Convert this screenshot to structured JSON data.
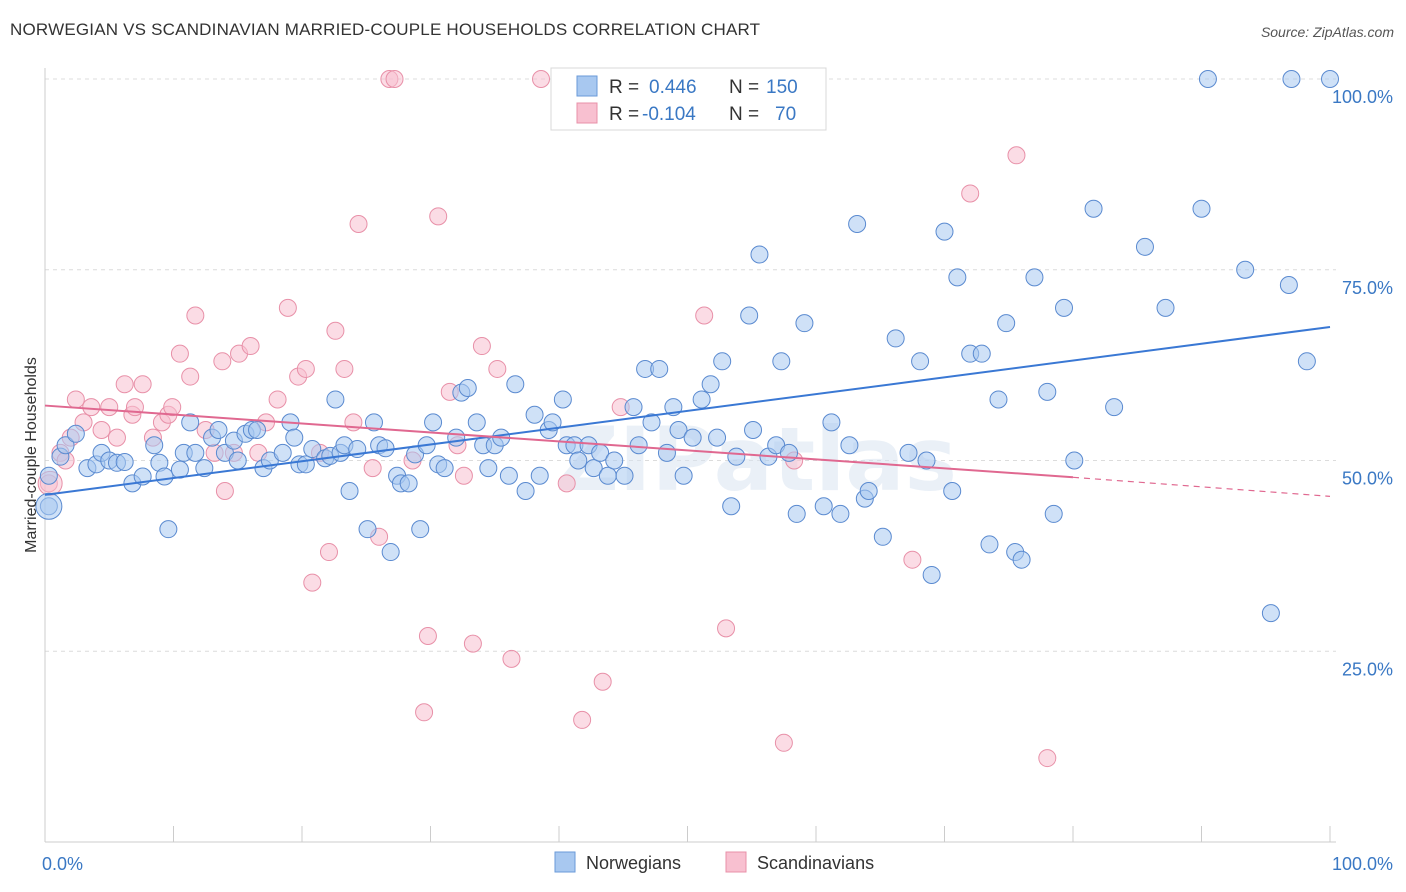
{
  "header": {
    "title": "NORWEGIAN VS SCANDINAVIAN MARRIED-COUPLE HOUSEHOLDS CORRELATION CHART",
    "source": "Source: ZipAtlas.com"
  },
  "watermark": "ZIPatlas",
  "stats_box": {
    "rows": [
      {
        "r_label": "R =",
        "r_value": "0.446",
        "n_label": "N =",
        "n_value": "150",
        "color": "#a8c8f0",
        "stroke": "#6a9ad8"
      },
      {
        "r_label": "R =",
        "r_value": "-0.104",
        "n_label": "N =",
        "n_value": "70",
        "color": "#f8c0d0",
        "stroke": "#e890a8"
      }
    ]
  },
  "legend": {
    "items": [
      {
        "label": "Norwegians",
        "color": "#a8c8f0",
        "stroke": "#6a9ad8"
      },
      {
        "label": "Scandinavians",
        "color": "#f8c0d0",
        "stroke": "#e890a8"
      }
    ]
  },
  "chart_data": {
    "type": "scatter",
    "title": "NORWEGIAN VS SCANDINAVIAN MARRIED-COUPLE HOUSEHOLDS CORRELATION CHART",
    "xlabel": "",
    "ylabel": "Married-couple Households",
    "xlim": [
      0,
      100
    ],
    "ylim": [
      0,
      100
    ],
    "x_tick_labels": {
      "left": "0.0%",
      "right": "100.0%"
    },
    "y_ticks": [
      {
        "value": 100,
        "label": "100.0%"
      },
      {
        "value": 75,
        "label": "75.0%"
      },
      {
        "value": 50,
        "label": "50.0%"
      },
      {
        "value": 25,
        "label": "25.0%"
      }
    ],
    "grid": "horizontal dashed",
    "legend_position": "bottom-center",
    "colors": {
      "norwegians": "#3a78d4",
      "scandinavians": "#e06890",
      "blue_fill": "#a8c8f0",
      "pink_fill": "#f8c0d0"
    },
    "series": [
      {
        "name": "Norwegians",
        "r": 0.446,
        "n": 150,
        "trend": {
          "x0": 0,
          "y0": 45.5,
          "x1": 100,
          "y1": 67.5
        },
        "points": [
          [
            0.3,
            44
          ],
          [
            0.3,
            48
          ],
          [
            1.2,
            50.5
          ],
          [
            1.6,
            52
          ],
          [
            2.4,
            53.5
          ],
          [
            3.3,
            49
          ],
          [
            4,
            49.5
          ],
          [
            4.4,
            51
          ],
          [
            5,
            50
          ],
          [
            5.6,
            49.7
          ],
          [
            6.2,
            49.8
          ],
          [
            6.8,
            47
          ],
          [
            7.6,
            47.9
          ],
          [
            8.5,
            52
          ],
          [
            8.9,
            49.7
          ],
          [
            9.3,
            47.9
          ],
          [
            9.6,
            41
          ],
          [
            10.5,
            48.8
          ],
          [
            10.8,
            51
          ],
          [
            11.3,
            55
          ],
          [
            11.7,
            51
          ],
          [
            12.4,
            49
          ],
          [
            13,
            53
          ],
          [
            13.5,
            54
          ],
          [
            14,
            51
          ],
          [
            14.7,
            52.6
          ],
          [
            15,
            50
          ],
          [
            15.6,
            53.5
          ],
          [
            16.1,
            54
          ],
          [
            16.5,
            54
          ],
          [
            17,
            49
          ],
          [
            17.5,
            50
          ],
          [
            18.5,
            51
          ],
          [
            19.1,
            55
          ],
          [
            19.4,
            53
          ],
          [
            19.8,
            49.5
          ],
          [
            20.3,
            49.5
          ],
          [
            20.8,
            51.5
          ],
          [
            21.8,
            50.3
          ],
          [
            22.2,
            50.6
          ],
          [
            22.6,
            58
          ],
          [
            23,
            51
          ],
          [
            23.3,
            52
          ],
          [
            23.7,
            46
          ],
          [
            24.3,
            51.5
          ],
          [
            25.1,
            41
          ],
          [
            25.6,
            55
          ],
          [
            26,
            52
          ],
          [
            26.5,
            51.6
          ],
          [
            26.9,
            38
          ],
          [
            27.4,
            48
          ],
          [
            27.7,
            47
          ],
          [
            28.3,
            47
          ],
          [
            28.8,
            50.8
          ],
          [
            29.2,
            41
          ],
          [
            29.7,
            52
          ],
          [
            30.2,
            55
          ],
          [
            30.6,
            49.5
          ],
          [
            31.1,
            49
          ],
          [
            32,
            53
          ],
          [
            32.4,
            58.9
          ],
          [
            32.9,
            59.5
          ],
          [
            33.6,
            55
          ],
          [
            34.1,
            52
          ],
          [
            34.5,
            49
          ],
          [
            35,
            52
          ],
          [
            35.5,
            53
          ],
          [
            36.1,
            48
          ],
          [
            36.6,
            60
          ],
          [
            37.4,
            46
          ],
          [
            38.1,
            56
          ],
          [
            38.5,
            48
          ],
          [
            39.2,
            54
          ],
          [
            39.5,
            55
          ],
          [
            40.3,
            58
          ],
          [
            40.6,
            52
          ],
          [
            41.2,
            52
          ],
          [
            41.5,
            50
          ],
          [
            42.3,
            52
          ],
          [
            42.7,
            49
          ],
          [
            43.2,
            51
          ],
          [
            43.8,
            48
          ],
          [
            44.3,
            50
          ],
          [
            45.1,
            48
          ],
          [
            45.8,
            57
          ],
          [
            46.2,
            52
          ],
          [
            46.7,
            62
          ],
          [
            47.2,
            55
          ],
          [
            47.8,
            62
          ],
          [
            48.4,
            51
          ],
          [
            48.9,
            57
          ],
          [
            49.3,
            54
          ],
          [
            49.7,
            48
          ],
          [
            50.4,
            53
          ],
          [
            51.1,
            58
          ],
          [
            51.8,
            60
          ],
          [
            52.3,
            53
          ],
          [
            52.7,
            63
          ],
          [
            53.4,
            44
          ],
          [
            53.8,
            50.5
          ],
          [
            54.8,
            69
          ],
          [
            55.1,
            54
          ],
          [
            55.6,
            77
          ],
          [
            56.3,
            50.5
          ],
          [
            56.9,
            52
          ],
          [
            57.3,
            63
          ],
          [
            57.9,
            51
          ],
          [
            58.5,
            43
          ],
          [
            59.1,
            68
          ],
          [
            60.6,
            44
          ],
          [
            61.2,
            55
          ],
          [
            61.9,
            43
          ],
          [
            62.6,
            52
          ],
          [
            63.2,
            81
          ],
          [
            63.8,
            45
          ],
          [
            64.1,
            46
          ],
          [
            65.2,
            40
          ],
          [
            66.2,
            66
          ],
          [
            67.2,
            51
          ],
          [
            68.1,
            63
          ],
          [
            68.6,
            50
          ],
          [
            69,
            35
          ],
          [
            70,
            80
          ],
          [
            70.6,
            46
          ],
          [
            71,
            74
          ],
          [
            72,
            64
          ],
          [
            72.9,
            64
          ],
          [
            73.5,
            39
          ],
          [
            74.2,
            58
          ],
          [
            74.8,
            68
          ],
          [
            75.5,
            38
          ],
          [
            76,
            37
          ],
          [
            77,
            74
          ],
          [
            78,
            59
          ],
          [
            78.5,
            43
          ],
          [
            79.3,
            70
          ],
          [
            80.1,
            50
          ],
          [
            81.6,
            83
          ],
          [
            83.2,
            57
          ],
          [
            85.6,
            78
          ],
          [
            87.2,
            70
          ],
          [
            90,
            83
          ],
          [
            93.4,
            75
          ],
          [
            95.4,
            30
          ],
          [
            96.8,
            73
          ],
          [
            98.2,
            63
          ],
          [
            97,
            100
          ],
          [
            90.5,
            100
          ],
          [
            100,
            100
          ]
        ]
      },
      {
        "name": "Scandinavians",
        "r": -0.104,
        "n": 70,
        "trend": {
          "x0": 0,
          "y0": 57.2,
          "x1": 80,
          "y1": 47.8,
          "dash_to_x": 100,
          "dash_to_y": 45.3
        },
        "points": [
          [
            0.3,
            47
          ],
          [
            1.2,
            51
          ],
          [
            1.6,
            50
          ],
          [
            2,
            53
          ],
          [
            2.4,
            58
          ],
          [
            3,
            55
          ],
          [
            3.6,
            57
          ],
          [
            4.4,
            54
          ],
          [
            5,
            57
          ],
          [
            5.6,
            53
          ],
          [
            6.2,
            60
          ],
          [
            6.8,
            56
          ],
          [
            7,
            57
          ],
          [
            7.6,
            60
          ],
          [
            8.4,
            53
          ],
          [
            9.1,
            55
          ],
          [
            9.6,
            56
          ],
          [
            9.9,
            57
          ],
          [
            10.5,
            64
          ],
          [
            11.3,
            61
          ],
          [
            11.7,
            69
          ],
          [
            12.5,
            54
          ],
          [
            13.2,
            51
          ],
          [
            13.8,
            63
          ],
          [
            14,
            46
          ],
          [
            14.7,
            51
          ],
          [
            15.1,
            64
          ],
          [
            16,
            65
          ],
          [
            16.6,
            51
          ],
          [
            17.2,
            55
          ],
          [
            18.1,
            58
          ],
          [
            18.9,
            70
          ],
          [
            19.7,
            61
          ],
          [
            20.3,
            62
          ],
          [
            20.8,
            34
          ],
          [
            21.4,
            51
          ],
          [
            22.1,
            38
          ],
          [
            22.6,
            67
          ],
          [
            23.3,
            62
          ],
          [
            24,
            55
          ],
          [
            24.4,
            81
          ],
          [
            25.5,
            49
          ],
          [
            26,
            40
          ],
          [
            26.8,
            100
          ],
          [
            27.2,
            100
          ],
          [
            28.6,
            50
          ],
          [
            29.5,
            17
          ],
          [
            29.8,
            27
          ],
          [
            30.6,
            82
          ],
          [
            31.5,
            59
          ],
          [
            32.1,
            52
          ],
          [
            32.6,
            48
          ],
          [
            33.3,
            26
          ],
          [
            34,
            65
          ],
          [
            35.2,
            62
          ],
          [
            36.3,
            24
          ],
          [
            38.6,
            100
          ],
          [
            40.6,
            47
          ],
          [
            41.8,
            16
          ],
          [
            43.4,
            21
          ],
          [
            44.8,
            57
          ],
          [
            51.3,
            69
          ],
          [
            53,
            28
          ],
          [
            57.5,
            13
          ],
          [
            58.3,
            50
          ],
          [
            67.5,
            37
          ],
          [
            72,
            85
          ],
          [
            75.6,
            90
          ],
          [
            78,
            11
          ]
        ]
      }
    ]
  }
}
